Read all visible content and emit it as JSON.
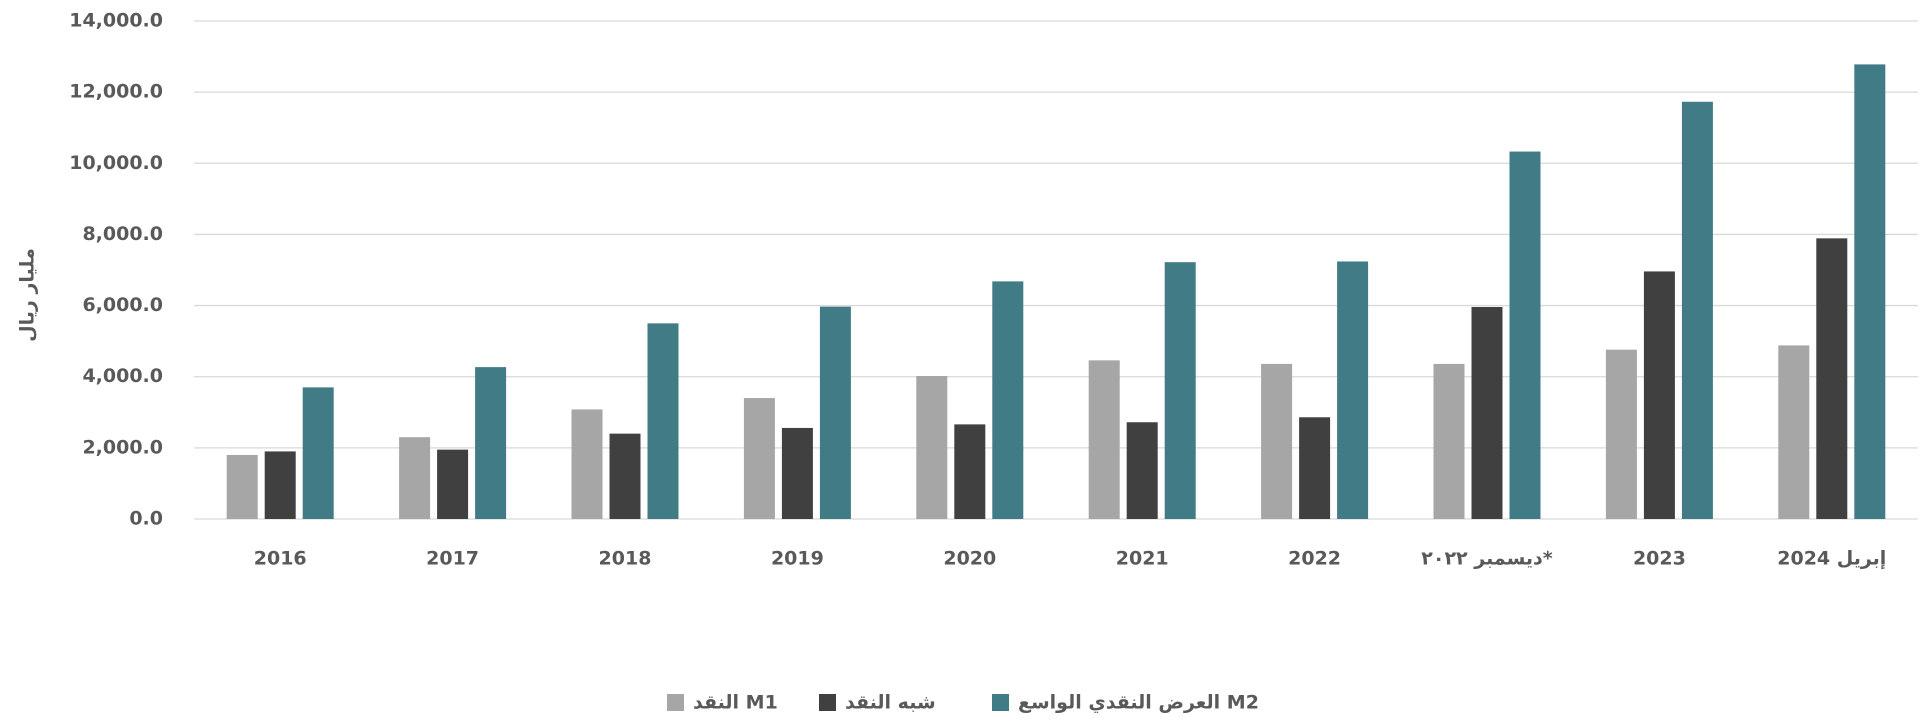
{
  "chart_data": {
    "type": "bar",
    "y_label": "مليار ريال",
    "categories": [
      "2016",
      "2017",
      "2018",
      "2019",
      "2020",
      "2021",
      "2022",
      "ديسمبر ٢٠٢٢*",
      "2023",
      "إبريل 2024"
    ],
    "series": [
      {
        "name": "النقد M1",
        "color": "#a6a6a6",
        "values": [
          1800,
          2300,
          3080,
          3400,
          4020,
          4460,
          4360,
          4360,
          4760,
          4880
        ]
      },
      {
        "name": "شبه النقد",
        "color": "#404040",
        "values": [
          1900,
          1950,
          2400,
          2560,
          2660,
          2720,
          2860,
          5960,
          6960,
          7890
        ]
      },
      {
        "name": "العرض النقدي الواسع M2",
        "color": "#417b85",
        "values": [
          3700,
          4270,
          5500,
          5970,
          6680,
          7220,
          7240,
          10330,
          11730,
          12780
        ]
      }
    ],
    "ylim": [
      0,
      14000
    ],
    "yticks": [
      {
        "value": 0,
        "label": "0.0"
      },
      {
        "value": 2000,
        "label": "2,000.0"
      },
      {
        "value": 4000,
        "label": "4,000.0"
      },
      {
        "value": 6000,
        "label": "6,000.0"
      },
      {
        "value": 8000,
        "label": "8,000.0"
      },
      {
        "value": 10000,
        "label": "10,000.0"
      },
      {
        "value": 12000,
        "label": "12,000.0"
      },
      {
        "value": 14000,
        "label": "14,000.0"
      }
    ],
    "grid": true,
    "legend": "bottom"
  }
}
